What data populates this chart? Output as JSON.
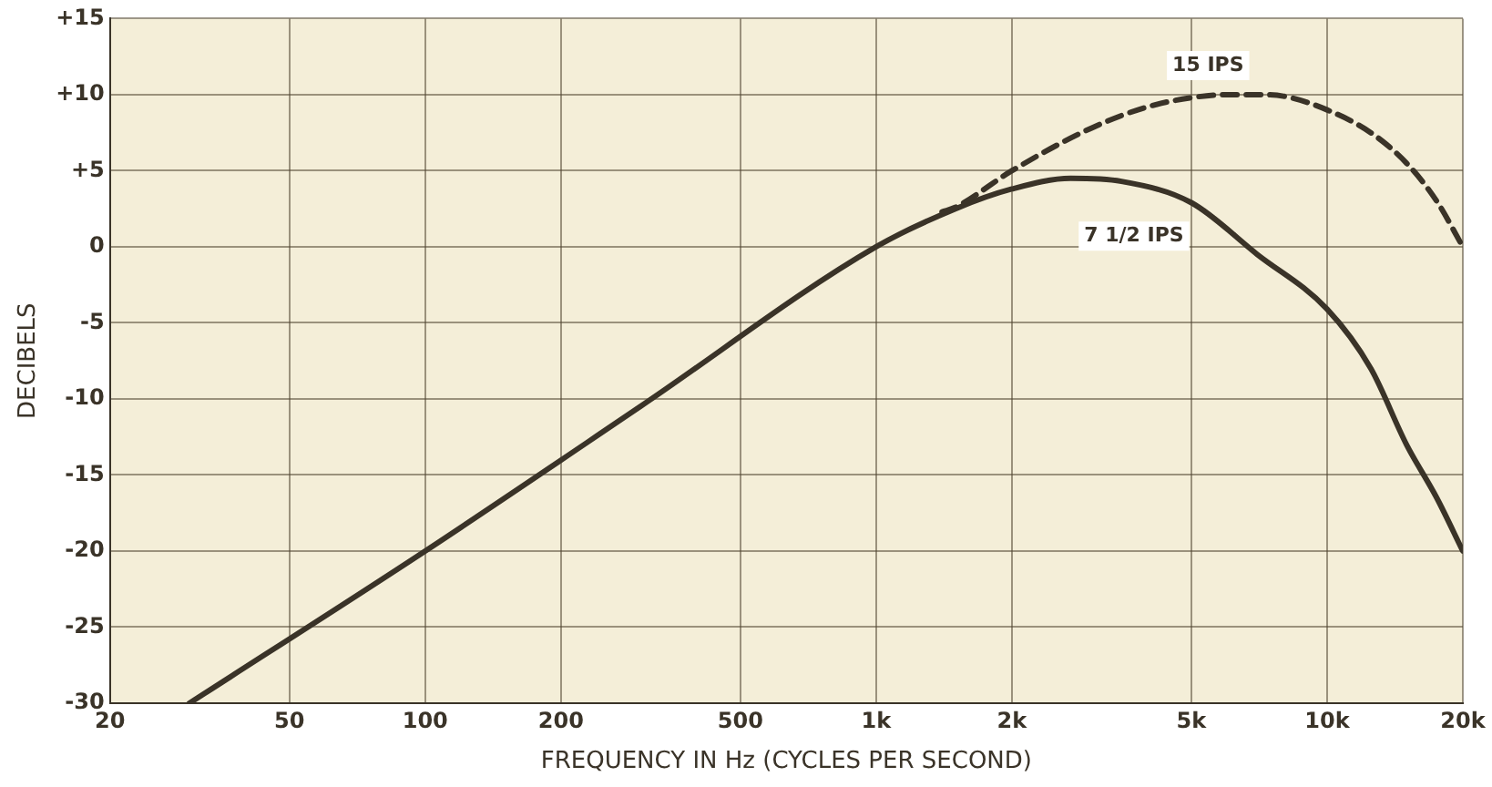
{
  "chart_data": {
    "type": "line",
    "xlabel": "FREQUENCY IN Hz (CYCLES PER SECOND)",
    "ylabel": "DECIBELS",
    "log": "x",
    "grid": true,
    "legend": false,
    "marker": "none",
    "xlim": [
      20,
      20000
    ],
    "xticks": [
      20,
      50,
      100,
      200,
      500,
      {
        "value": 1000,
        "label": "1k"
      },
      {
        "value": 2000,
        "label": "2k"
      },
      {
        "value": 5000,
        "label": "5k"
      },
      {
        "value": 10000,
        "label": "10k"
      },
      {
        "value": 20000,
        "label": "20k"
      }
    ],
    "ylim": [
      -30,
      15
    ],
    "yticks": [
      -30,
      -25,
      -20,
      -15,
      -10,
      -5,
      0,
      {
        "value": 5,
        "label": "+5"
      },
      {
        "value": 10,
        "label": "+10"
      },
      {
        "value": 15,
        "label": "+15"
      }
    ],
    "series": [
      {
        "name": "15 IPS",
        "color": "#3a3328",
        "line_style": "dashed",
        "x": [
          1400,
          1500,
          2000,
          3000,
          4000,
          5000,
          6000,
          7000,
          8000,
          10000,
          12500,
          15000,
          17500,
          20000
        ],
        "values": [
          2.3,
          2.6,
          5,
          7.8,
          9.2,
          9.8,
          10,
          10,
          9.9,
          9,
          7.5,
          5.5,
          3,
          0
        ]
      },
      {
        "name": "7 1/2 IPS",
        "color": "#3a3328",
        "line_style": "solid",
        "x": [
          30,
          100,
          300,
          1000,
          1500,
          2000,
          2700,
          3500,
          5000,
          7000,
          10000,
          12500,
          15000,
          17500,
          20000
        ],
        "values": [
          -30,
          -20,
          -10.5,
          0,
          2.5,
          3.8,
          4.5,
          4.3,
          2.9,
          -0.5,
          -4.1,
          -8,
          -13,
          -16.5,
          -20
        ]
      }
    ]
  }
}
